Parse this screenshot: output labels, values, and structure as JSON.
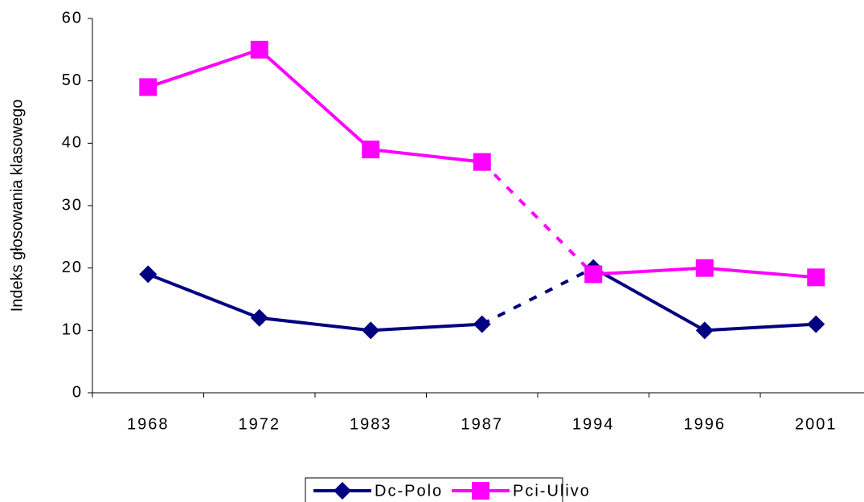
{
  "chart_data": {
    "type": "line",
    "y_label": "Indeks głosowania klasowego",
    "categories": [
      "1968",
      "1972",
      "1983",
      "1987",
      "1994",
      "1996",
      "2001"
    ],
    "series": [
      {
        "name": "Dc-Polo",
        "color": "#000080",
        "marker": "diamond",
        "values": [
          19,
          12,
          10,
          11,
          20,
          10,
          11
        ]
      },
      {
        "name": "Pci-Ulivo",
        "color": "#ff00ff",
        "marker": "square",
        "values": [
          49,
          55,
          39,
          37,
          19,
          20,
          18.5
        ]
      }
    ],
    "dash_segment": [
      3,
      4
    ],
    "ylim": [
      0,
      60
    ],
    "yticks": [
      0,
      10,
      20,
      30,
      40,
      50,
      60
    ],
    "legend": "bottom"
  }
}
